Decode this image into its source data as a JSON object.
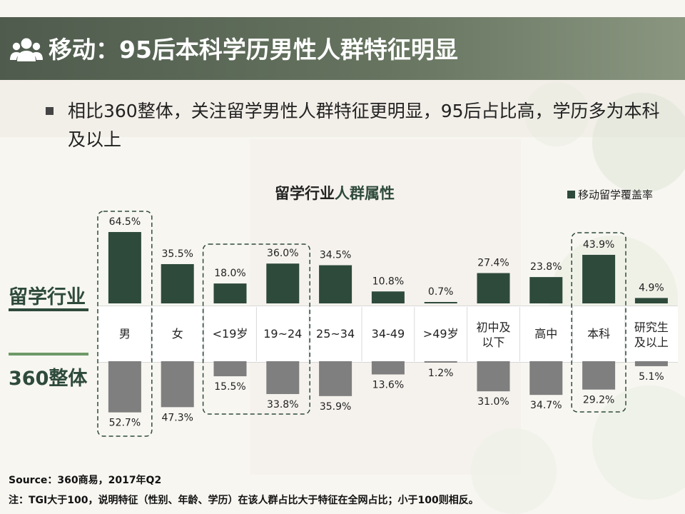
{
  "header": {
    "title": "移动：95后本科学历男性人群特征明显",
    "icon": "people-group-icon"
  },
  "bullet": {
    "text": "相比360整体，关注留学男性人群特征更明显，95后占比高，学历多为本科及以上"
  },
  "chart_data": {
    "type": "bar",
    "title_part1": "留学行业",
    "title_part2": "人群属性",
    "legend": "移动留学覆盖率",
    "categories": [
      "男",
      "女",
      "<19岁",
      "19~24",
      "25~34",
      "34-49",
      ">49岁",
      "初中及\n以下",
      "高中",
      "本科",
      "研究生\n及以上"
    ],
    "series": [
      {
        "name": "留学行业",
        "values": [
          64.5,
          35.5,
          18.0,
          36.0,
          34.5,
          10.8,
          0.7,
          27.4,
          23.8,
          43.9,
          4.9
        ],
        "labels": [
          "64.5%",
          "35.5%",
          "18.0%",
          "36.0%",
          "34.5%",
          "10.8%",
          "0.7%",
          "27.4%",
          "23.8%",
          "43.9%",
          "4.9%"
        ]
      },
      {
        "name": "360整体",
        "values": [
          52.7,
          47.3,
          15.5,
          33.8,
          35.9,
          13.6,
          1.2,
          31.0,
          34.7,
          29.2,
          5.1
        ],
        "labels": [
          "52.7%",
          "47.3%",
          "15.5%",
          "33.8%",
          "35.9%",
          "13.6%",
          "1.2%",
          "31.0%",
          "34.7%",
          "29.2%",
          "5.1%"
        ]
      }
    ],
    "highlight_groups": [
      [
        0,
        0
      ],
      [
        2,
        3
      ],
      [
        9,
        9
      ]
    ],
    "colors": {
      "top": "#2e4a3b",
      "bottom": "#7f7f7f",
      "dash": "#2e4a3b"
    }
  },
  "row_labels": {
    "top": "留学行业",
    "bottom": "360整体",
    "top_line_color": "#2e4a3b",
    "bottom_line_color": "#6e9a68"
  },
  "source": "Source：360商易，2017年Q2",
  "footnote": "注：TGI大于100，说明特征（性别、年龄、学历）在该人群占比大于特征在全网占比；小于100则相反。"
}
